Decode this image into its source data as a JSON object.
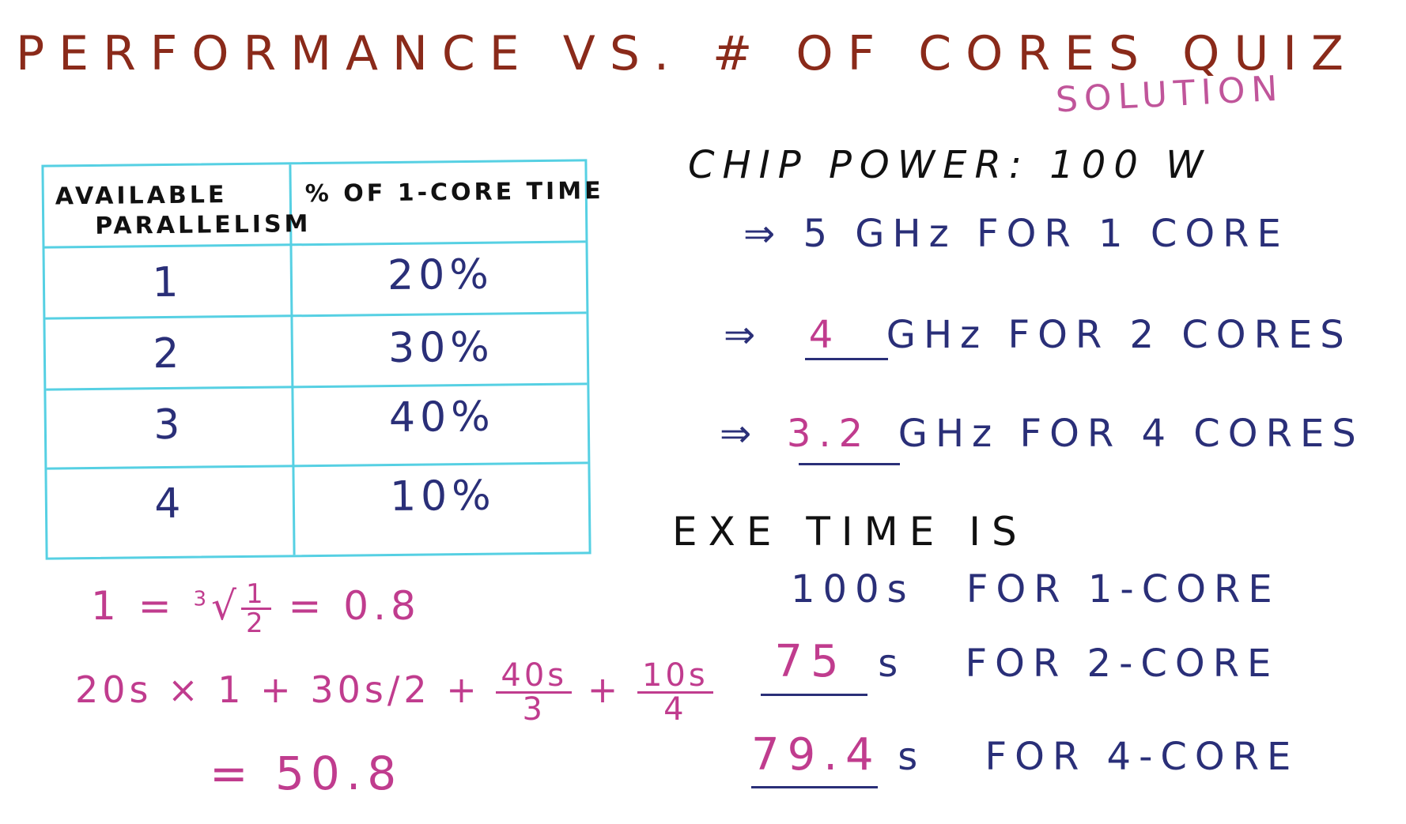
{
  "title": "PERFORMANCE VS. # OF CORES QUIZ",
  "subtitle": "SOLUTION",
  "table": {
    "header_left_line1": "AVAILABLE",
    "header_left_line2": "PARALLELISM",
    "header_right": "% OF 1-CORE TIME",
    "rows": [
      {
        "parallelism": "1",
        "percent": "20%"
      },
      {
        "parallelism": "2",
        "percent": "30%"
      },
      {
        "parallelism": "3",
        "percent": "40%"
      },
      {
        "parallelism": "4",
        "percent": "10%"
      }
    ]
  },
  "chip_power": "CHIP POWER: 100 W",
  "freq_lines": [
    {
      "arrow": "⇒",
      "value": "5",
      "text": "GHz FOR 1 CORE"
    },
    {
      "arrow": "⇒",
      "value": "4",
      "text": "GHz FOR 2 CORES"
    },
    {
      "arrow": "⇒",
      "value": "3.2",
      "text": "GHz FOR 4 CORES"
    }
  ],
  "exe_heading": "EXE TIME IS",
  "exe_lines": [
    {
      "value": "100s",
      "text": "FOR 1-CORE"
    },
    {
      "value": "75",
      "unit": "s",
      "text": "FOR 2-CORE"
    },
    {
      "value": "79.4",
      "unit": "s",
      "text": "FOR 4-CORE"
    }
  ],
  "math": {
    "line1_lhs": "1 =",
    "line1_root_index": "3",
    "line1_num": "1",
    "line1_den": "2",
    "line1_rhs": "= 0.8",
    "line2_a": "20s × 1 + 30s/2 +",
    "line2_f1_num": "40s",
    "line2_f1_den": "3",
    "line2_plus": "+",
    "line2_f2_num": "10s",
    "line2_f2_den": "4",
    "line3": "= 50.8"
  },
  "colors": {
    "title": "#8a2a1a",
    "subtitle": "#c0559a",
    "table_lines": "#56d0e3",
    "blue_ink": "#2a2f78",
    "pink_ink": "#c03c8e",
    "black_ink": "#111111"
  }
}
